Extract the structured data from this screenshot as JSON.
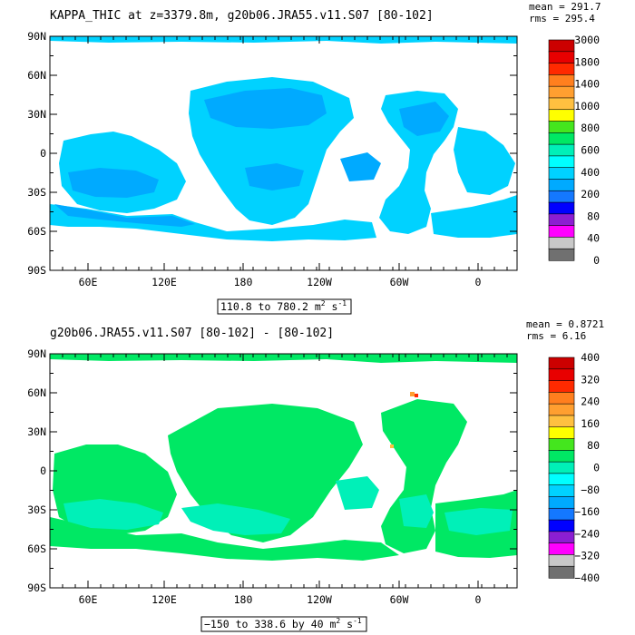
{
  "chart_data": [
    {
      "type": "heatmap",
      "title": "KAPPA_THIC at z=3379.8m, g20b06.JRA55.v11.S07 [80-102]",
      "stats": {
        "mean": "mean = 291.7",
        "rms": "rms = 295.4"
      },
      "x_ticks": [
        "60E",
        "120E",
        "180",
        "120W",
        "60W",
        "0"
      ],
      "y_ticks": [
        "90N",
        "60N",
        "30N",
        "0",
        "30S",
        "60S",
        "90S"
      ],
      "colorbar": {
        "labels": [
          "3000",
          "1800",
          "1400",
          "1000",
          "800",
          "600",
          "400",
          "200",
          "80",
          "40",
          "0"
        ],
        "colors": [
          "#cc0000",
          "#e80000",
          "#ff2a00",
          "#ff7f1e",
          "#ff9f30",
          "#ffc040",
          "#ffff00",
          "#44e61e",
          "#00e864",
          "#00f0b8",
          "#00ffff",
          "#00d2ff",
          "#00aaff",
          "#1478ff",
          "#0000ff",
          "#8c1ed2",
          "#ff00ff",
          "#c8c8c8",
          "#707070"
        ]
      },
      "range_prefix": "110.8 to 780.2 m",
      "range_unit_sup": "2",
      "range_unit_tail": " s",
      "range_unit_sup2": "-1",
      "dominant_field": "#00d2ff",
      "secondary_field": "#00aaff"
    },
    {
      "type": "heatmap",
      "title": "g20b06.JRA55.v11.S07 [80-102] -  [80-102]",
      "stats": {
        "mean": "mean = 0.8721",
        "rms": "rms = 6.16"
      },
      "x_ticks": [
        "60E",
        "120E",
        "180",
        "120W",
        "60W",
        "0"
      ],
      "y_ticks": [
        "90N",
        "60N",
        "30N",
        "0",
        "30S",
        "60S",
        "90S"
      ],
      "colorbar": {
        "labels": [
          "400",
          "320",
          "240",
          "160",
          "80",
          "0",
          "−80",
          "−160",
          "−240",
          "−320",
          "−400"
        ],
        "colors": [
          "#cc0000",
          "#e80000",
          "#ff2a00",
          "#ff7f1e",
          "#ff9f30",
          "#ffc040",
          "#ffff00",
          "#44e61e",
          "#00e864",
          "#00f0b8",
          "#00ffff",
          "#00d2ff",
          "#00aaff",
          "#1478ff",
          "#0000ff",
          "#8c1ed2",
          "#ff00ff",
          "#c8c8c8",
          "#707070"
        ]
      },
      "range_prefix": "−150 to 338.6 by 40 m",
      "range_unit_sup": "2",
      "range_unit_tail": " s",
      "range_unit_sup2": "-1",
      "dominant_field": "#00e864",
      "secondary_field": "#00f0b8"
    }
  ]
}
